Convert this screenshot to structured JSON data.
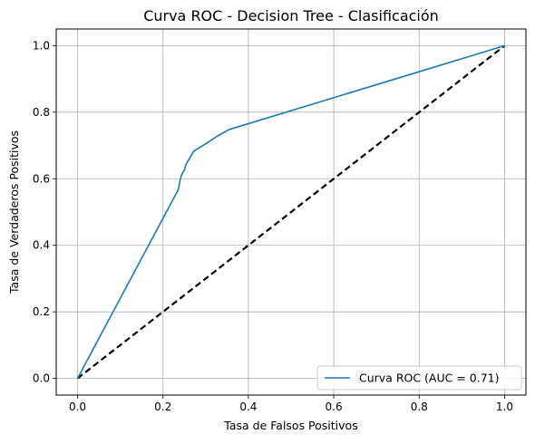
{
  "chart_data": {
    "type": "line",
    "title": "Curva ROC - Decision Tree - Clasificación",
    "xlabel": "Tasa de Falsos Positivos",
    "ylabel": "Tasa de Verdaderos Positivos",
    "xlim": [
      -0.05,
      1.05
    ],
    "ylim": [
      -0.05,
      1.05
    ],
    "xticks": [
      "0.0",
      "0.2",
      "0.4",
      "0.6",
      "0.8",
      "1.0"
    ],
    "yticks": [
      "0.0",
      "0.2",
      "0.4",
      "0.6",
      "0.8",
      "1.0"
    ],
    "xtick_values": [
      0.0,
      0.2,
      0.4,
      0.6,
      0.8,
      1.0
    ],
    "ytick_values": [
      0.0,
      0.2,
      0.4,
      0.6,
      0.8,
      1.0
    ],
    "grid": true,
    "legend_position": "lower-right",
    "series": [
      {
        "name": "Curva ROC (AUC = 0.71)",
        "color": "#1f77b4",
        "style": "solid",
        "x": [
          0.0,
          0.235,
          0.237,
          0.24,
          0.243,
          0.247,
          0.25,
          0.253,
          0.257,
          0.262,
          0.266,
          0.272,
          0.3,
          0.33,
          0.355,
          0.36,
          1.0
        ],
        "y": [
          0.0,
          0.565,
          0.575,
          0.595,
          0.61,
          0.62,
          0.625,
          0.64,
          0.65,
          0.66,
          0.67,
          0.683,
          0.705,
          0.73,
          0.748,
          0.75,
          1.0
        ]
      },
      {
        "name": "",
        "color": "#000000",
        "style": "dashed",
        "x": [
          0.0,
          1.0
        ],
        "y": [
          0.0,
          1.0
        ]
      }
    ]
  }
}
